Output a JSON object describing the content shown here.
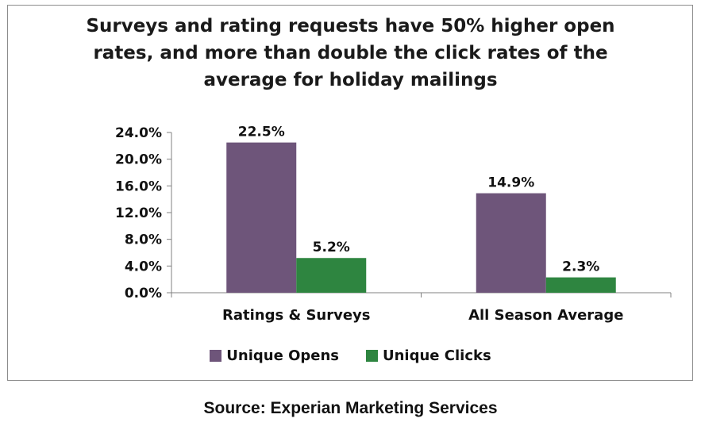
{
  "chart_data": {
    "type": "bar",
    "title": "Surveys and rating requests have 50% higher open rates, and more than double the click rates of the average for holiday mailings",
    "title_lines": [
      "Surveys and rating requests have 50% higher open",
      "rates, and more than double the click rates of the",
      "average for holiday mailings"
    ],
    "categories": [
      "Ratings & Surveys",
      "All Season Average"
    ],
    "series": [
      {
        "name": "Unique Opens",
        "color": "#6e557a",
        "values": [
          22.5,
          14.9
        ],
        "labels": [
          "22.5%",
          "14.9%"
        ]
      },
      {
        "name": "Unique Clicks",
        "color": "#2e8540",
        "values": [
          5.2,
          2.3
        ],
        "labels": [
          "5.2%",
          "2.3%"
        ]
      }
    ],
    "yticks": [
      "0.0%",
      "4.0%",
      "8.0%",
      "12.0%",
      "16.0%",
      "20.0%",
      "24.0%"
    ],
    "ylim": [
      0,
      24
    ],
    "xlabel": "",
    "ylabel": "",
    "legend_position": "bottom"
  },
  "source": "Source: Experian Marketing Services"
}
